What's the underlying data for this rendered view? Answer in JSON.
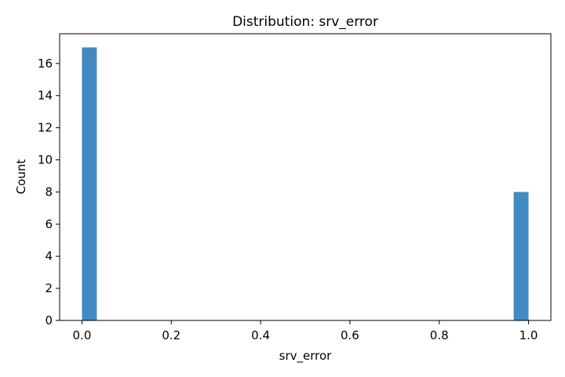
{
  "chart_data": {
    "type": "bar",
    "title": "Distribution: srv_error",
    "xlabel": "srv_error",
    "ylabel": "Count",
    "bins": [
      {
        "x_start": 0.0,
        "x_end": 0.0333,
        "count": 17
      },
      {
        "x_start": 0.9667,
        "x_end": 1.0,
        "count": 8
      }
    ],
    "xlim": [
      -0.05,
      1.05
    ],
    "ylim": [
      0,
      17.85
    ],
    "x_ticks": [
      "0.0",
      "0.2",
      "0.4",
      "0.6",
      "0.8",
      "1.0"
    ],
    "y_ticks": [
      "0",
      "2",
      "4",
      "6",
      "8",
      "10",
      "12",
      "14",
      "16"
    ],
    "bar_color": "#428bc2",
    "grid": false,
    "legend": "none"
  }
}
